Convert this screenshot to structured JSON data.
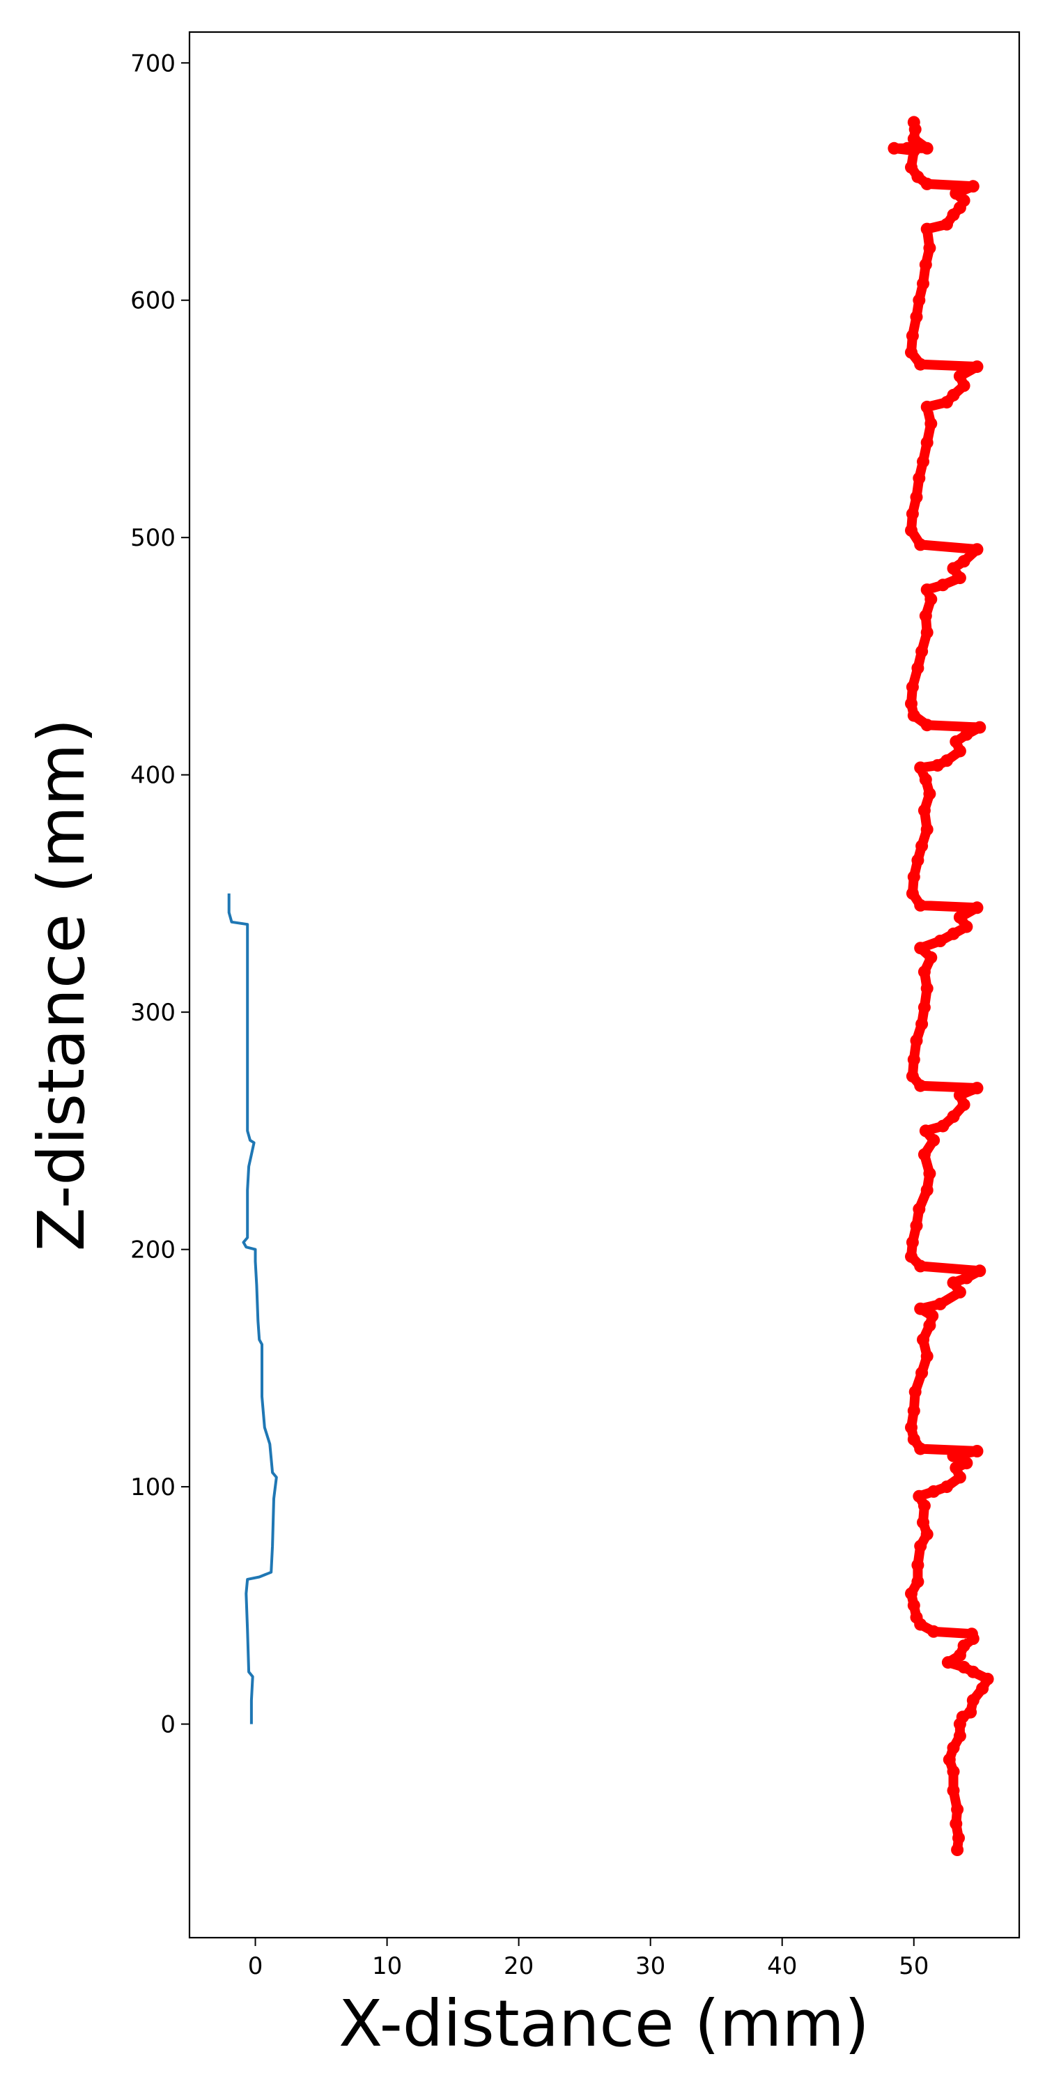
{
  "chart_data": {
    "type": "line",
    "xlabel": "X-distance (mm)",
    "ylabel": "Z-distance (mm)",
    "xlim": [
      -5,
      58
    ],
    "ylim": [
      -90,
      713
    ],
    "xticks": [
      0,
      10,
      20,
      30,
      40,
      50
    ],
    "yticks": [
      0,
      100,
      200,
      300,
      400,
      500,
      600,
      700
    ],
    "grid": false,
    "legend": "none",
    "series": [
      {
        "style": "line",
        "color": "#1f77b4",
        "points": [
          [
            -0.3,
            0
          ],
          [
            -0.3,
            10
          ],
          [
            -0.2,
            20
          ],
          [
            -0.5,
            22
          ],
          [
            -0.6,
            40
          ],
          [
            -0.7,
            55
          ],
          [
            -0.6,
            61
          ],
          [
            0.3,
            62
          ],
          [
            1.2,
            64
          ],
          [
            1.3,
            75
          ],
          [
            1.4,
            95
          ],
          [
            1.6,
            104
          ],
          [
            1.3,
            106
          ],
          [
            1.2,
            112
          ],
          [
            1.1,
            118
          ],
          [
            0.7,
            125
          ],
          [
            0.5,
            138
          ],
          [
            0.5,
            150
          ],
          [
            0.5,
            160
          ],
          [
            0.3,
            162
          ],
          [
            0.2,
            170
          ],
          [
            0.1,
            185
          ],
          [
            0.0,
            195
          ],
          [
            0.0,
            200
          ],
          [
            -0.7,
            201
          ],
          [
            -0.9,
            203
          ],
          [
            -0.6,
            205
          ],
          [
            -0.6,
            225
          ],
          [
            -0.5,
            235
          ],
          [
            -0.3,
            240
          ],
          [
            -0.1,
            245
          ],
          [
            -0.4,
            246
          ],
          [
            -0.6,
            250
          ],
          [
            -0.6,
            270
          ],
          [
            -0.6,
            285
          ],
          [
            -0.6,
            300
          ],
          [
            -0.6,
            315
          ],
          [
            -0.6,
            330
          ],
          [
            -0.6,
            337
          ],
          [
            -1.8,
            338
          ],
          [
            -1.9,
            340
          ],
          [
            -2.0,
            342
          ],
          [
            -2.0,
            350
          ]
        ]
      },
      {
        "style": "markers",
        "color": "#ff0000",
        "points": [
          [
            53.3,
            -53
          ],
          [
            53.4,
            -48
          ],
          [
            53.2,
            -42
          ],
          [
            53.3,
            -36
          ],
          [
            53.0,
            -28
          ],
          [
            53.0,
            -20
          ],
          [
            52.7,
            -15
          ],
          [
            53.0,
            -10
          ],
          [
            53.5,
            -5
          ],
          [
            53.5,
            0
          ],
          [
            53.7,
            3
          ],
          [
            54.3,
            5
          ],
          [
            54.5,
            10
          ],
          [
            55.2,
            15
          ],
          [
            55.6,
            19
          ],
          [
            54.5,
            22
          ],
          [
            53.8,
            24
          ],
          [
            52.6,
            26
          ],
          [
            53.5,
            29
          ],
          [
            53.8,
            33
          ],
          [
            54.5,
            36
          ],
          [
            54.4,
            38
          ],
          [
            51.5,
            39
          ],
          [
            50.5,
            42
          ],
          [
            50.2,
            45
          ],
          [
            50.0,
            50
          ],
          [
            49.8,
            55
          ],
          [
            50.3,
            60
          ],
          [
            50.3,
            67
          ],
          [
            50.5,
            75
          ],
          [
            51.0,
            80
          ],
          [
            50.7,
            85
          ],
          [
            50.8,
            92
          ],
          [
            50.4,
            96
          ],
          [
            51.5,
            98
          ],
          [
            52.5,
            100
          ],
          [
            53.5,
            104
          ],
          [
            53.2,
            108
          ],
          [
            54.0,
            110
          ],
          [
            53.0,
            113
          ],
          [
            54.8,
            115
          ],
          [
            50.5,
            116
          ],
          [
            50.0,
            120
          ],
          [
            49.8,
            125
          ],
          [
            50.0,
            132
          ],
          [
            50.1,
            140
          ],
          [
            50.6,
            148
          ],
          [
            51.0,
            155
          ],
          [
            50.7,
            162
          ],
          [
            51.2,
            168
          ],
          [
            51.4,
            172
          ],
          [
            50.5,
            175
          ],
          [
            52.0,
            177
          ],
          [
            53.5,
            182
          ],
          [
            53.0,
            186
          ],
          [
            54.0,
            188
          ],
          [
            55.0,
            191
          ],
          [
            50.5,
            193
          ],
          [
            49.8,
            197
          ],
          [
            49.9,
            203
          ],
          [
            50.2,
            210
          ],
          [
            50.4,
            217
          ],
          [
            51.0,
            225
          ],
          [
            51.2,
            232
          ],
          [
            50.8,
            240
          ],
          [
            51.5,
            246
          ],
          [
            50.9,
            250
          ],
          [
            52.2,
            252
          ],
          [
            53.0,
            256
          ],
          [
            53.8,
            261
          ],
          [
            53.5,
            265
          ],
          [
            54.8,
            268
          ],
          [
            50.5,
            269
          ],
          [
            49.9,
            273
          ],
          [
            50.0,
            280
          ],
          [
            50.2,
            288
          ],
          [
            50.6,
            295
          ],
          [
            50.8,
            302
          ],
          [
            51.0,
            310
          ],
          [
            50.8,
            317
          ],
          [
            51.3,
            323
          ],
          [
            50.5,
            327
          ],
          [
            52.0,
            330
          ],
          [
            53.0,
            333
          ],
          [
            54.0,
            336
          ],
          [
            53.5,
            340
          ],
          [
            54.8,
            344
          ],
          [
            50.5,
            345
          ],
          [
            49.9,
            350
          ],
          [
            50.0,
            357
          ],
          [
            50.3,
            364
          ],
          [
            50.6,
            370
          ],
          [
            51.0,
            377
          ],
          [
            50.8,
            385
          ],
          [
            51.2,
            392
          ],
          [
            50.9,
            398
          ],
          [
            50.5,
            403
          ],
          [
            51.8,
            404
          ],
          [
            52.5,
            406
          ],
          [
            53.5,
            410
          ],
          [
            53.2,
            414
          ],
          [
            54.0,
            417
          ],
          [
            55.0,
            420
          ],
          [
            51.0,
            421
          ],
          [
            50.0,
            425
          ],
          [
            49.8,
            430
          ],
          [
            49.9,
            437
          ],
          [
            50.3,
            445
          ],
          [
            50.6,
            452
          ],
          [
            51.0,
            460
          ],
          [
            50.9,
            467
          ],
          [
            51.3,
            474
          ],
          [
            51.0,
            478
          ],
          [
            52.2,
            480
          ],
          [
            53.5,
            483
          ],
          [
            53.0,
            487
          ],
          [
            53.8,
            490
          ],
          [
            54.8,
            495
          ],
          [
            50.5,
            497
          ],
          [
            49.8,
            503
          ],
          [
            49.9,
            510
          ],
          [
            50.2,
            517
          ],
          [
            50.4,
            525
          ],
          [
            50.7,
            532
          ],
          [
            51.0,
            540
          ],
          [
            51.3,
            548
          ],
          [
            51.0,
            555
          ],
          [
            52.5,
            557
          ],
          [
            53.0,
            560
          ],
          [
            53.8,
            564
          ],
          [
            53.5,
            568
          ],
          [
            54.8,
            572
          ],
          [
            50.5,
            573
          ],
          [
            49.8,
            578
          ],
          [
            49.9,
            585
          ],
          [
            50.2,
            593
          ],
          [
            50.4,
            600
          ],
          [
            50.7,
            607
          ],
          [
            50.9,
            615
          ],
          [
            51.2,
            622
          ],
          [
            51.0,
            630
          ],
          [
            52.5,
            632
          ],
          [
            53.0,
            636
          ],
          [
            53.5,
            639
          ],
          [
            53.8,
            642
          ],
          [
            53.2,
            645
          ],
          [
            54.5,
            648
          ],
          [
            51.0,
            649
          ],
          [
            50.3,
            652
          ],
          [
            49.8,
            656
          ],
          [
            50.0,
            663
          ],
          [
            48.5,
            664
          ],
          [
            49.5,
            664
          ],
          [
            51.0,
            664
          ],
          [
            50.0,
            668
          ],
          [
            50.1,
            672
          ],
          [
            50.0,
            675
          ]
        ]
      }
    ]
  }
}
